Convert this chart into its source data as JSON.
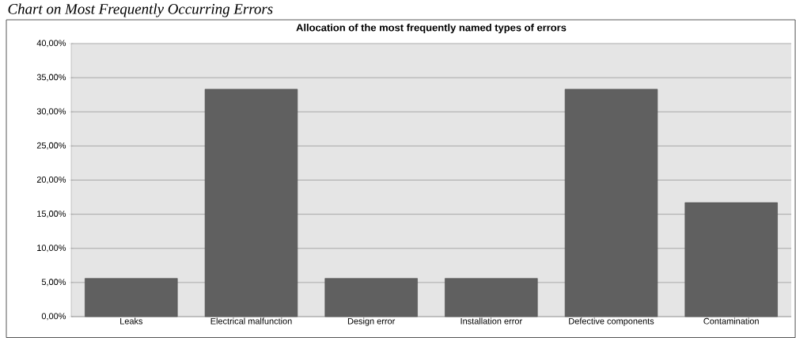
{
  "chart_data": {
    "type": "bar",
    "title": "Allocation of the most frequently named types of errors",
    "annotations": [
      "Chart on Most Frequently Occurring Errors"
    ],
    "categories": [
      "Leaks",
      "Electrical malfunction",
      "Design error",
      "Installation error",
      "Defective components",
      "Contamination"
    ],
    "values": [
      5.6,
      33.3,
      5.6,
      5.6,
      33.3,
      16.7
    ],
    "color": "#606060",
    "ylim": [
      0,
      40
    ],
    "yticks": [
      {
        "value": 0,
        "label": "0,00%"
      },
      {
        "value": 5,
        "label": "5,00%"
      },
      {
        "value": 10,
        "label": "10,00%"
      },
      {
        "value": 15,
        "label": "15,00%"
      },
      {
        "value": 20,
        "label": "20,00%"
      },
      {
        "value": 25,
        "label": "25,00%"
      },
      {
        "value": 30,
        "label": "30,00%"
      },
      {
        "value": 35,
        "label": "35,00%"
      },
      {
        "value": 40,
        "label": "40,00%"
      }
    ],
    "grid": "y"
  }
}
